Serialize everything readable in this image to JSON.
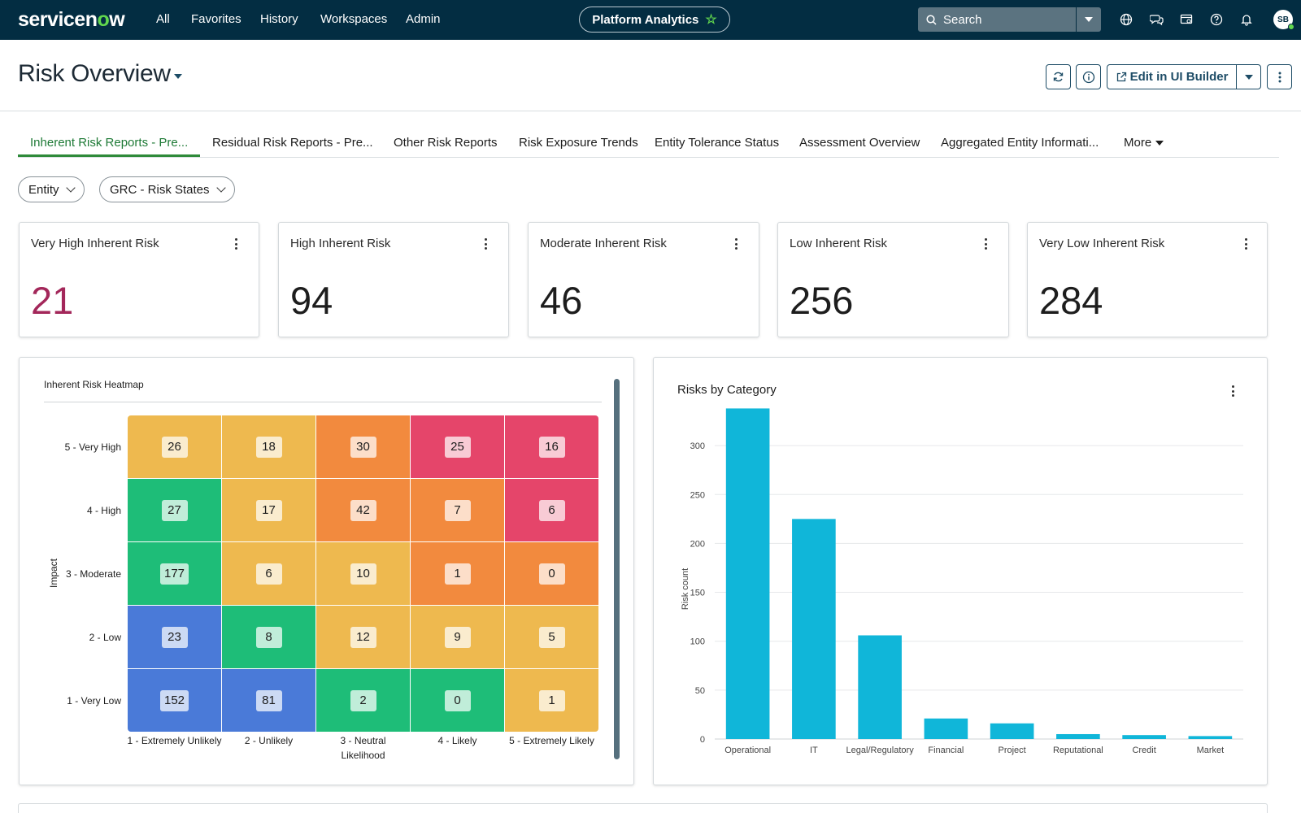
{
  "nav": {
    "logo_pre": "servicen",
    "logo_o": "o",
    "logo_post": "w",
    "links": [
      "All",
      "Favorites",
      "History",
      "Workspaces",
      "Admin"
    ],
    "workspace_pill": "Platform Analytics",
    "search_placeholder": "Search",
    "avatar_initials": "SB"
  },
  "header": {
    "title": "Risk Overview",
    "edit_button": "Edit in UI Builder"
  },
  "tabs": {
    "items": [
      "Inherent Risk Reports - Pre...",
      "Residual Risk Reports - Pre...",
      "Other Risk Reports",
      "Risk Exposure Trends",
      "Entity Tolerance Status",
      "Assessment Overview",
      "Aggregated Entity Informati..."
    ],
    "more": "More"
  },
  "filters": {
    "entity": "Entity",
    "states": "GRC - Risk States"
  },
  "kpis": [
    {
      "label": "Very High Inherent Risk",
      "value": "21",
      "color": "#a3275a"
    },
    {
      "label": "High Inherent Risk",
      "value": "94",
      "color": "#1d1d1d"
    },
    {
      "label": "Moderate Inherent Risk",
      "value": "46",
      "color": "#1d1d1d"
    },
    {
      "label": "Low Inherent Risk",
      "value": "256",
      "color": "#1d1d1d"
    },
    {
      "label": "Very Low Inherent Risk",
      "value": "284",
      "color": "#1d1d1d"
    }
  ],
  "heatmap": {
    "title": "Inherent Risk Heatmap",
    "y_axis_title": "Impact",
    "x_axis_title": "Likelihood",
    "rows": [
      "5 - Very High",
      "4 - High",
      "3 - Moderate",
      "2 - Low",
      "1 - Very Low"
    ],
    "cols": [
      "1 - Extremely Unlikely",
      "2 - Unlikely",
      "3 - Neutral",
      "4 - Likely",
      "5 - Extremely Likely"
    ],
    "values": [
      [
        26,
        18,
        30,
        25,
        16
      ],
      [
        27,
        17,
        42,
        7,
        6
      ],
      [
        177,
        6,
        10,
        1,
        0
      ],
      [
        23,
        8,
        12,
        9,
        5
      ],
      [
        152,
        81,
        2,
        0,
        1
      ]
    ],
    "colors": [
      [
        "#eeb94f",
        "#eeb94f",
        "#f28a3e",
        "#e5456a",
        "#e5456a"
      ],
      [
        "#1ebd78",
        "#eeb94f",
        "#f28a3e",
        "#f28a3e",
        "#e5456a"
      ],
      [
        "#1ebd78",
        "#eeb94f",
        "#eeb94f",
        "#f28a3e",
        "#f28a3e"
      ],
      [
        "#4a7ad8",
        "#1ebd78",
        "#eeb94f",
        "#eeb94f",
        "#eeb94f"
      ],
      [
        "#4a7ad8",
        "#4a7ad8",
        "#1ebd78",
        "#1ebd78",
        "#eeb94f"
      ]
    ]
  },
  "chart_data": {
    "type": "bar",
    "title": "Risks by Category",
    "xlabel": "",
    "ylabel": "Risk count",
    "categories": [
      "Operational",
      "IT",
      "Legal/Regulatory",
      "Financial",
      "Project",
      "Reputational",
      "Credit",
      "Market"
    ],
    "values": [
      338,
      225,
      106,
      21,
      16,
      5,
      4,
      3
    ],
    "ylim": [
      0,
      340
    ],
    "yticks": [
      0,
      50,
      100,
      150,
      200,
      250,
      300
    ],
    "grid": true,
    "bar_color": "#10b6d9"
  }
}
